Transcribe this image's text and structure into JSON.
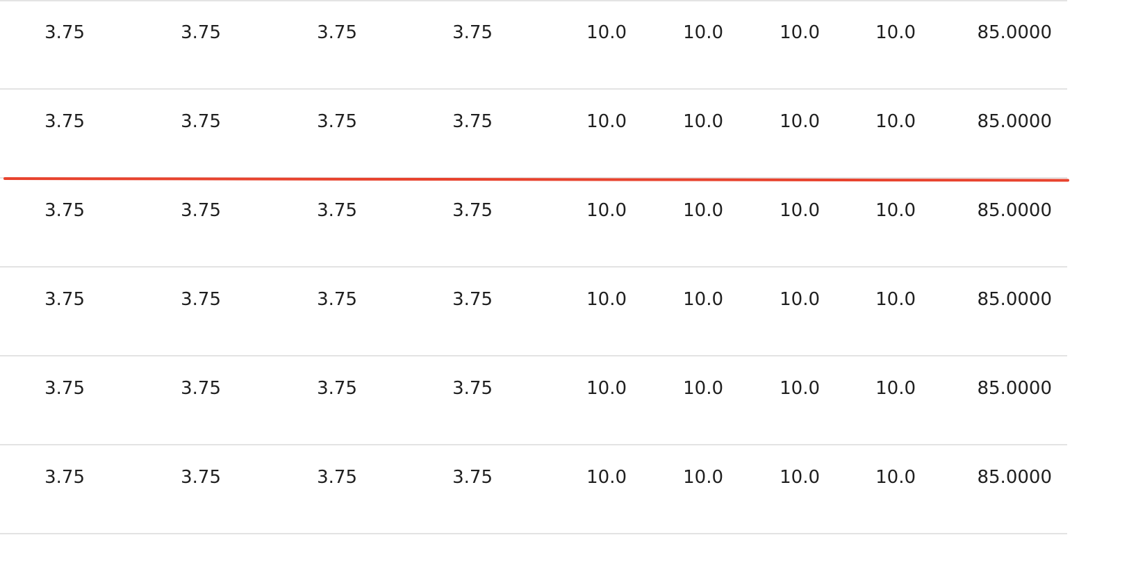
{
  "table": {
    "rows": [
      {
        "cells": [
          "3.75",
          "3.75",
          "3.75",
          "3.75",
          "10.0",
          "10.0",
          "10.0",
          "10.0",
          "85.0000"
        ]
      },
      {
        "cells": [
          "3.75",
          "3.75",
          "3.75",
          "3.75",
          "10.0",
          "10.0",
          "10.0",
          "10.0",
          "85.0000"
        ]
      },
      {
        "cells": [
          "3.75",
          "3.75",
          "3.75",
          "3.75",
          "10.0",
          "10.0",
          "10.0",
          "10.0",
          "85.0000"
        ]
      },
      {
        "cells": [
          "3.75",
          "3.75",
          "3.75",
          "3.75",
          "10.0",
          "10.0",
          "10.0",
          "10.0",
          "85.0000"
        ]
      },
      {
        "cells": [
          "3.75",
          "3.75",
          "3.75",
          "3.75",
          "10.0",
          "10.0",
          "10.0",
          "10.0",
          "85.0000"
        ]
      },
      {
        "cells": [
          "3.75",
          "3.75",
          "3.75",
          "3.75",
          "10.0",
          "10.0",
          "10.0",
          "10.0",
          "85.0000"
        ]
      }
    ]
  },
  "colors": {
    "drop_indicator": "#e8432e",
    "row_border": "#e3e3e3",
    "text": "#1f1f1f"
  }
}
